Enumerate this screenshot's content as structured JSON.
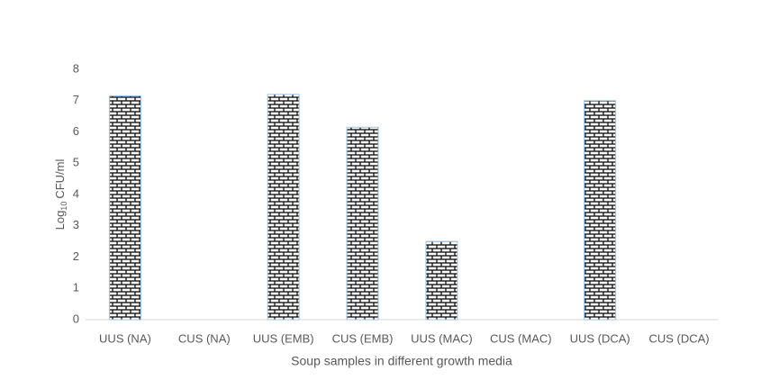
{
  "chart_data": {
    "type": "bar",
    "y_label": {
      "base": "Log",
      "subscript": "10",
      "rest": "CFU/ml"
    },
    "x_label": "Soup samples in different growth media",
    "categories": [
      "UUS (NA)",
      "CUS (NA)",
      "UUS (EMB)",
      "CUS (EMB)",
      "UUS (MAC)",
      "CUS (MAC)",
      "UUS (DCA)",
      "CUS (DCA)"
    ],
    "values": [
      7.15,
      0,
      7.2,
      6.15,
      2.5,
      0,
      7.0,
      0
    ],
    "color": "#000000",
    "ylim": [
      0,
      8
    ],
    "yticks": [
      0,
      1,
      2,
      3,
      4,
      5,
      6,
      7,
      8
    ],
    "grid": false
  }
}
